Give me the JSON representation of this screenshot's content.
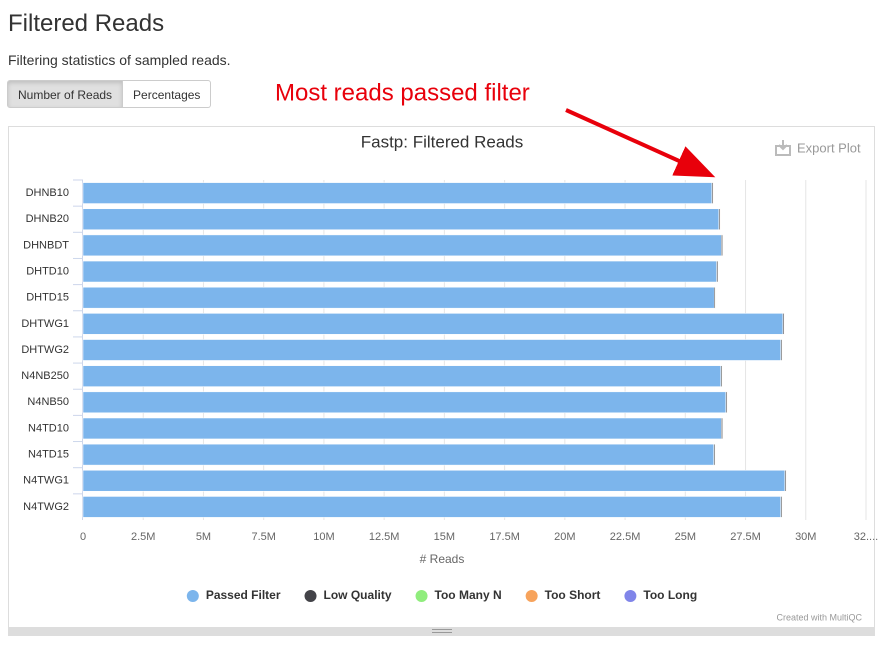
{
  "header": {
    "title": "Filtered Reads",
    "description": "Filtering statistics of sampled reads."
  },
  "buttons": [
    "Number of Reads",
    "Percentages"
  ],
  "annotation": "Most reads passed filter",
  "toolbar": {
    "export": "Export Plot"
  },
  "credit": "Created with MultiQC",
  "chart_data": {
    "type": "bar",
    "orientation": "horizontal",
    "stacked": true,
    "grid": true,
    "title": "Fastp: Filtered Reads",
    "xlabel": "# Reads",
    "categories": [
      "DHNB10",
      "DHNB20",
      "DHNBDT",
      "DHTD10",
      "DHTD15",
      "DHTWG1",
      "DHTWG2",
      "N4NB250",
      "N4NB50",
      "N4TD10",
      "N4TD15",
      "N4TWG1",
      "N4TWG2"
    ],
    "series": [
      {
        "name": "Passed Filter",
        "color": "#7cb5ec",
        "values": [
          26100000,
          26390000,
          26500000,
          26300000,
          26200000,
          29050000,
          28960000,
          26470000,
          26680000,
          26500000,
          26180000,
          29130000,
          28960000
        ]
      },
      {
        "name": "Low Quality",
        "color": "#434348",
        "values": [
          50000,
          50000,
          50000,
          50000,
          50000,
          50000,
          50000,
          50000,
          50000,
          50000,
          50000,
          50000,
          50000
        ]
      },
      {
        "name": "Too Many N",
        "color": "#90ed7d",
        "values": [
          5000,
          5000,
          5000,
          5000,
          5000,
          5000,
          5000,
          5000,
          5000,
          5000,
          5000,
          5000,
          5000
        ]
      },
      {
        "name": "Too Short",
        "color": "#f7a35c",
        "values": [
          20000,
          20000,
          20000,
          20000,
          20000,
          20000,
          20000,
          20000,
          20000,
          20000,
          20000,
          20000,
          20000
        ]
      },
      {
        "name": "Too Long",
        "color": "#8085e9",
        "values": [
          0,
          0,
          0,
          0,
          0,
          0,
          0,
          0,
          0,
          0,
          0,
          0,
          0
        ]
      }
    ],
    "xlim": [
      0,
      32500000
    ],
    "xticks": [
      0,
      {
        "value": 2500000,
        "label": "2.5M"
      },
      {
        "value": 5000000,
        "label": "5M"
      },
      {
        "value": 7500000,
        "label": "7.5M"
      },
      {
        "value": 10000000,
        "label": "10M"
      },
      {
        "value": 12500000,
        "label": "12.5M"
      },
      {
        "value": 15000000,
        "label": "15M"
      },
      {
        "value": 17500000,
        "label": "17.5M"
      },
      {
        "value": 20000000,
        "label": "20M"
      },
      {
        "value": 22500000,
        "label": "22.5M"
      },
      {
        "value": 25000000,
        "label": "25M"
      },
      {
        "value": 27500000,
        "label": "27.5M"
      },
      {
        "value": 30000000,
        "label": "30M"
      },
      {
        "value": 32500000,
        "label": "32...."
      }
    ]
  }
}
